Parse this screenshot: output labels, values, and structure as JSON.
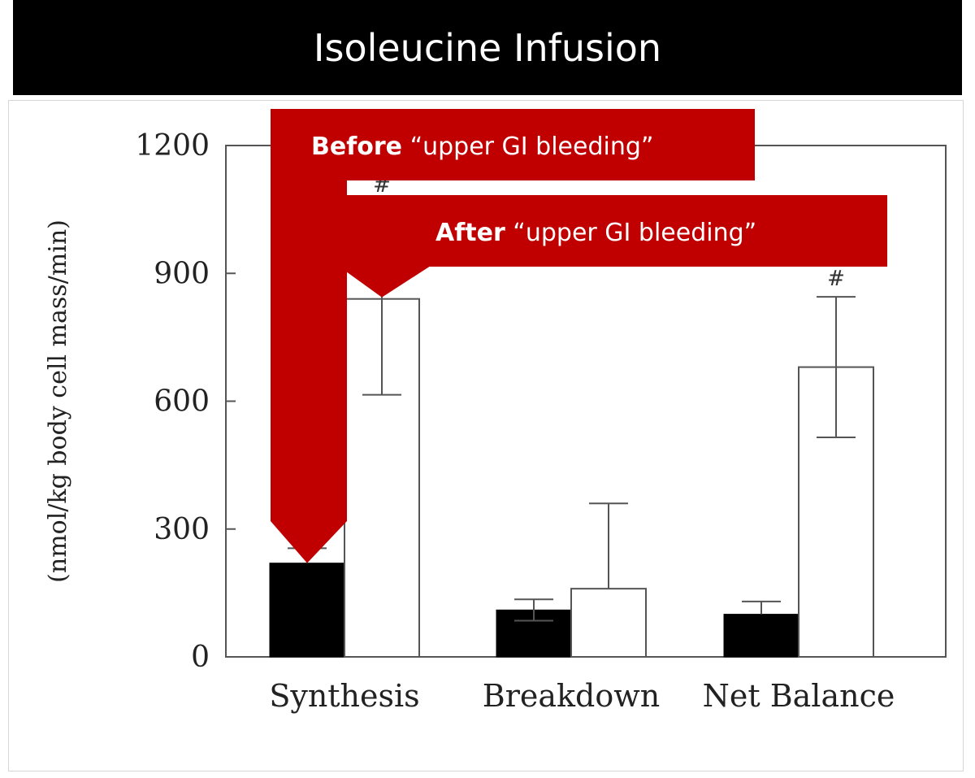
{
  "slide": {
    "title": "Isoleucine Infusion"
  },
  "colors": {
    "callout": "#c00000",
    "before_bar": "#000000",
    "after_bar": "#ffffff"
  },
  "chart_data": {
    "type": "bar",
    "categories": [
      "Synthesis",
      "Breakdown",
      "Net Balance"
    ],
    "ylabel": "(nmol/kg body cell mass/min)",
    "ylim": [
      0,
      1200
    ],
    "yticks": [
      0,
      300,
      600,
      900,
      1200
    ],
    "grid": false,
    "series": [
      {
        "name": "Before",
        "values": [
          220,
          110,
          100
        ],
        "error": [
          35,
          25,
          30
        ],
        "error_low": [
          false,
          true,
          false
        ],
        "marks": [
          "",
          "",
          ""
        ]
      },
      {
        "name": "After",
        "values": [
          840,
          160,
          680
        ],
        "error": [
          225,
          200,
          165
        ],
        "error_low": [
          true,
          false,
          true
        ],
        "marks": [
          "#",
          "",
          "#"
        ]
      }
    ],
    "callouts": [
      {
        "bold": "Before",
        "text": "“upper GI bleeding”",
        "series": 0,
        "category": 0
      },
      {
        "bold": "After",
        "text": "“upper GI bleeding”",
        "series": 1,
        "category": 0
      }
    ]
  }
}
